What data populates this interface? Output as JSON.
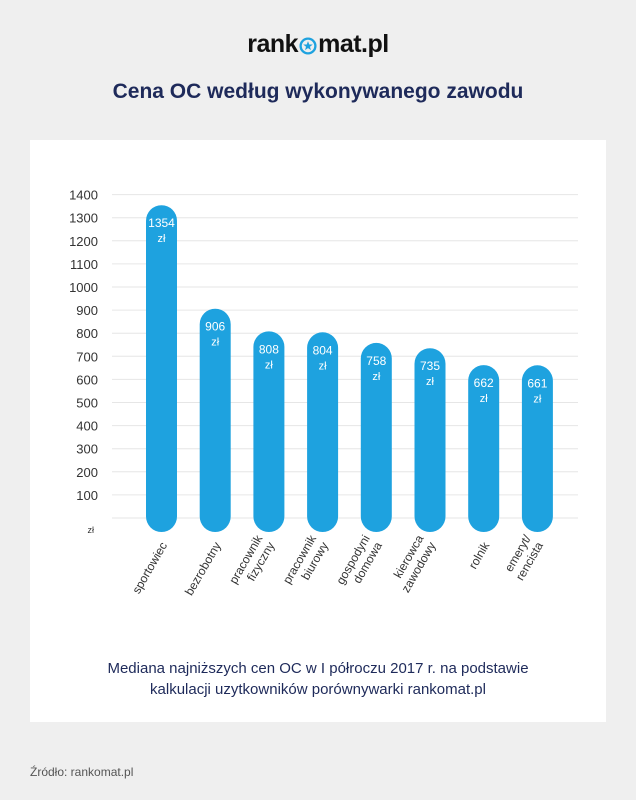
{
  "header": {
    "logo_before": "rank",
    "logo_after": "mat.pl",
    "title": "Cena OC według wykonywanego zawodu"
  },
  "footer": {
    "caption_line1": "Mediana najniższych cen OC w I półroczu 2017 r. na podstawie",
    "caption_line2": "kalkulacji uzytkowników porównywarki rankomat.pl",
    "source": "Źródło: rankomat.pl"
  },
  "colors": {
    "bar": "#1ea2df",
    "title": "#1e2a5a",
    "logo_star": "#1ea2df"
  },
  "chart_data": {
    "type": "bar",
    "categories": [
      [
        "sportowiec"
      ],
      [
        "bezrobotny"
      ],
      [
        "pracownik",
        "fizyczny"
      ],
      [
        "pracownik",
        "biurowy"
      ],
      [
        "gospodyni",
        "domowa"
      ],
      [
        "kierowca",
        "zawodowy"
      ],
      [
        "rolnik"
      ],
      [
        "emeryt/",
        "rencista"
      ]
    ],
    "values": [
      1354,
      906,
      808,
      804,
      758,
      735,
      662,
      661
    ],
    "value_unit": "zł",
    "yticks": [
      100,
      200,
      300,
      400,
      500,
      600,
      700,
      800,
      900,
      1000,
      1100,
      1200,
      1300,
      1400
    ],
    "ylabel": "zł",
    "ylim": [
      0,
      1400
    ],
    "grid": true
  }
}
